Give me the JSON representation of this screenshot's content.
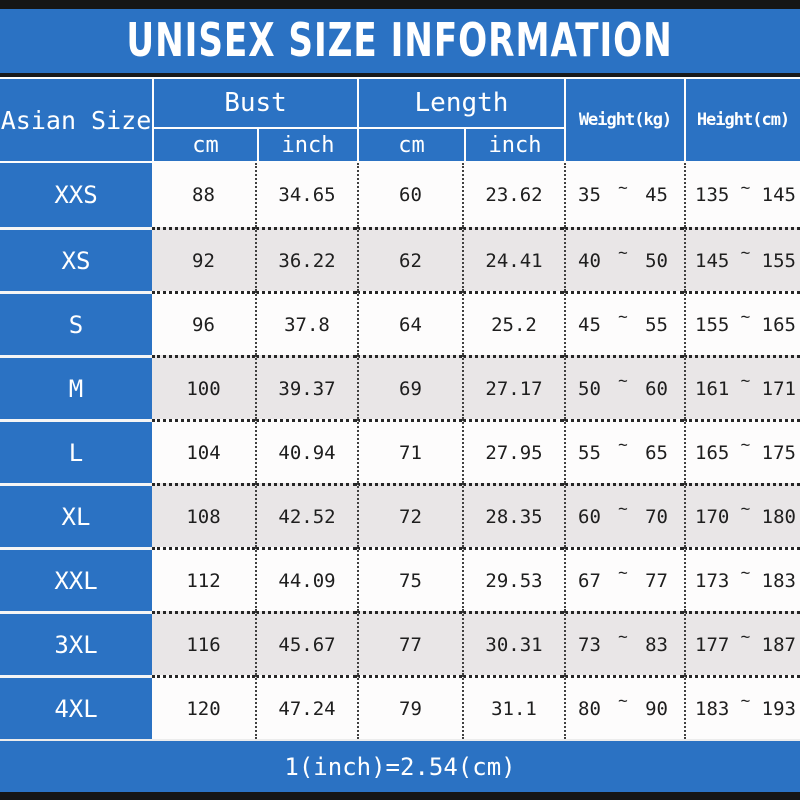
{
  "page": {
    "title": "UNISEX SIZE INFORMATION",
    "footer_note": "1(inch)=2.54(cm)"
  },
  "colors": {
    "accent_blue": "#2b72c3",
    "row_gray": "#e9e6e7",
    "row_white": "#fdfcfc",
    "bar_black": "#151515"
  },
  "table": {
    "headers": {
      "size": "Asian Size",
      "bust": "Bust",
      "length": "Length",
      "cm": "cm",
      "inch": "inch",
      "weight": "Weight(kg)",
      "height": "Height(cm)"
    },
    "range_separator": "~",
    "rows": [
      {
        "size": "XXS",
        "bust_cm": "88",
        "bust_inch": "34.65",
        "length_cm": "60",
        "length_inch": "23.62",
        "weight_min": "35",
        "weight_max": "45",
        "height_min": "135",
        "height_max": "145"
      },
      {
        "size": "XS",
        "bust_cm": "92",
        "bust_inch": "36.22",
        "length_cm": "62",
        "length_inch": "24.41",
        "weight_min": "40",
        "weight_max": "50",
        "height_min": "145",
        "height_max": "155"
      },
      {
        "size": "S",
        "bust_cm": "96",
        "bust_inch": "37.8",
        "length_cm": "64",
        "length_inch": "25.2",
        "weight_min": "45",
        "weight_max": "55",
        "height_min": "155",
        "height_max": "165"
      },
      {
        "size": "M",
        "bust_cm": "100",
        "bust_inch": "39.37",
        "length_cm": "69",
        "length_inch": "27.17",
        "weight_min": "50",
        "weight_max": "60",
        "height_min": "161",
        "height_max": "171"
      },
      {
        "size": "L",
        "bust_cm": "104",
        "bust_inch": "40.94",
        "length_cm": "71",
        "length_inch": "27.95",
        "weight_min": "55",
        "weight_max": "65",
        "height_min": "165",
        "height_max": "175"
      },
      {
        "size": "XL",
        "bust_cm": "108",
        "bust_inch": "42.52",
        "length_cm": "72",
        "length_inch": "28.35",
        "weight_min": "60",
        "weight_max": "70",
        "height_min": "170",
        "height_max": "180"
      },
      {
        "size": "XXL",
        "bust_cm": "112",
        "bust_inch": "44.09",
        "length_cm": "75",
        "length_inch": "29.53",
        "weight_min": "67",
        "weight_max": "77",
        "height_min": "173",
        "height_max": "183"
      },
      {
        "size": "3XL",
        "bust_cm": "116",
        "bust_inch": "45.67",
        "length_cm": "77",
        "length_inch": "30.31",
        "weight_min": "73",
        "weight_max": "83",
        "height_min": "177",
        "height_max": "187"
      },
      {
        "size": "4XL",
        "bust_cm": "120",
        "bust_inch": "47.24",
        "length_cm": "79",
        "length_inch": "31.1",
        "weight_min": "80",
        "weight_max": "90",
        "height_min": "183",
        "height_max": "193"
      }
    ]
  },
  "chart_data": {
    "type": "table",
    "title": "UNISEX SIZE INFORMATION",
    "note": "1(inch)=2.54(cm)",
    "columns": [
      "Asian Size",
      "Bust cm",
      "Bust inch",
      "Length cm",
      "Length inch",
      "Weight(kg)",
      "Height(cm)"
    ],
    "rows": [
      [
        "XXS",
        88,
        34.65,
        60,
        23.62,
        "35~45",
        "135~145"
      ],
      [
        "XS",
        92,
        36.22,
        62,
        24.41,
        "40~50",
        "145~155"
      ],
      [
        "S",
        96,
        37.8,
        64,
        25.2,
        "45~55",
        "155~165"
      ],
      [
        "M",
        100,
        39.37,
        69,
        27.17,
        "50~60",
        "161~171"
      ],
      [
        "L",
        104,
        40.94,
        71,
        27.95,
        "55~65",
        "165~175"
      ],
      [
        "XL",
        108,
        42.52,
        72,
        28.35,
        "60~70",
        "170~180"
      ],
      [
        "XXL",
        112,
        44.09,
        75,
        29.53,
        "67~77",
        "173~183"
      ],
      [
        "3XL",
        116,
        45.67,
        77,
        30.31,
        "73~83",
        "177~187"
      ],
      [
        "4XL",
        120,
        47.24,
        79,
        31.1,
        "80~90",
        "183~193"
      ]
    ]
  }
}
